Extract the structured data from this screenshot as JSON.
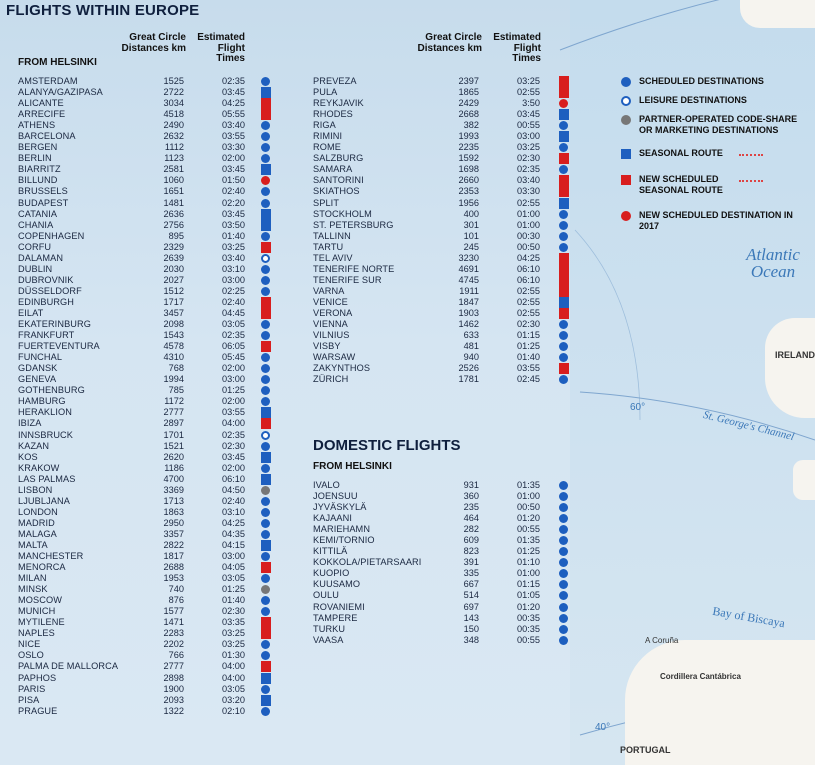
{
  "europe": {
    "title": "FLIGHTS WITHIN EUROPE",
    "from_label": "FROM HELSINKI",
    "col_distance": "Great Circle Distances km",
    "col_time": "Estimated Flight Times",
    "left": [
      {
        "city": "Amsterdam",
        "km": "1525",
        "time": "02:35",
        "marker": "scheduled"
      },
      {
        "city": "Alanya/Gazipasa",
        "km": "2722",
        "time": "03:45",
        "marker": "seasonal"
      },
      {
        "city": "Alicante",
        "km": "3034",
        "time": "04:25",
        "marker": "new-seasonal"
      },
      {
        "city": "Arrecife",
        "km": "4518",
        "time": "05:55",
        "marker": "new-seasonal"
      },
      {
        "city": "Athens",
        "km": "2490",
        "time": "03:40",
        "marker": "scheduled"
      },
      {
        "city": "Barcelona",
        "km": "2632",
        "time": "03:55",
        "marker": "scheduled"
      },
      {
        "city": "Bergen",
        "km": "1112",
        "time": "03:30",
        "marker": "scheduled"
      },
      {
        "city": "Berlin",
        "km": "1123",
        "time": "02:00",
        "marker": "scheduled"
      },
      {
        "city": "Biarritz",
        "km": "2581",
        "time": "03:45",
        "marker": "seasonal"
      },
      {
        "city": "Billund",
        "km": "1060",
        "time": "01:50",
        "marker": "new-dest"
      },
      {
        "city": "Brussels",
        "km": "1651",
        "time": "02:40",
        "marker": "scheduled"
      },
      {
        "city": "Budapest",
        "km": "1481",
        "time": "02:20",
        "marker": "scheduled"
      },
      {
        "city": "Catania",
        "km": "2636",
        "time": "03:45",
        "marker": "seasonal"
      },
      {
        "city": "Chania",
        "km": "2756",
        "time": "03:50",
        "marker": "seasonal"
      },
      {
        "city": "Copenhagen",
        "km": "895",
        "time": "01:40",
        "marker": "scheduled"
      },
      {
        "city": "Corfu",
        "km": "2329",
        "time": "03:25",
        "marker": "new-seasonal"
      },
      {
        "city": "Dalaman",
        "km": "2639",
        "time": "03:40",
        "marker": "leisure"
      },
      {
        "city": "Dublin",
        "km": "2030",
        "time": "03:10",
        "marker": "scheduled"
      },
      {
        "city": "Dubrovnik",
        "km": "2027",
        "time": "03:00",
        "marker": "scheduled"
      },
      {
        "city": "Düsseldorf",
        "km": "1512",
        "time": "02:25",
        "marker": "scheduled"
      },
      {
        "city": "Edinburgh",
        "km": "1717",
        "time": "02:40",
        "marker": "new-seasonal"
      },
      {
        "city": "Eilat",
        "km": "3457",
        "time": "04:45",
        "marker": "new-seasonal"
      },
      {
        "city": "Ekaterinburg",
        "km": "2098",
        "time": "03:05",
        "marker": "scheduled"
      },
      {
        "city": "Frankfurt",
        "km": "1543",
        "time": "02:35",
        "marker": "scheduled"
      },
      {
        "city": "Fuerteventura",
        "km": "4578",
        "time": "06:05",
        "marker": "new-seasonal"
      },
      {
        "city": "Funchal",
        "km": "4310",
        "time": "05:45",
        "marker": "scheduled"
      },
      {
        "city": "Gdansk",
        "km": "768",
        "time": "02:00",
        "marker": "scheduled"
      },
      {
        "city": "Geneva",
        "km": "1994",
        "time": "03:00",
        "marker": "scheduled"
      },
      {
        "city": "Gothenburg",
        "km": "785",
        "time": "01:25",
        "marker": "scheduled"
      },
      {
        "city": "Hamburg",
        "km": "1172",
        "time": "02:00",
        "marker": "scheduled"
      },
      {
        "city": "Heraklion",
        "km": "2777",
        "time": "03:55",
        "marker": "seasonal"
      },
      {
        "city": "Ibiza",
        "km": "2897",
        "time": "04:00",
        "marker": "new-seasonal"
      },
      {
        "city": "Innsbruck",
        "km": "1701",
        "time": "02:35",
        "marker": "leisure"
      },
      {
        "city": "Kazan",
        "km": "1521",
        "time": "02:30",
        "marker": "scheduled"
      },
      {
        "city": "Kos",
        "km": "2620",
        "time": "03:45",
        "marker": "seasonal"
      },
      {
        "city": "Krakow",
        "km": "1186",
        "time": "02:00",
        "marker": "scheduled"
      },
      {
        "city": "Las Palmas",
        "km": "4700",
        "time": "06:10",
        "marker": "seasonal"
      },
      {
        "city": "Lisbon",
        "km": "3369",
        "time": "04:50",
        "marker": "partner"
      },
      {
        "city": "Ljubljana",
        "km": "1713",
        "time": "02:40",
        "marker": "scheduled"
      },
      {
        "city": "London",
        "km": "1863",
        "time": "03:10",
        "marker": "scheduled"
      },
      {
        "city": "Madrid",
        "km": "2950",
        "time": "04:25",
        "marker": "scheduled"
      },
      {
        "city": "Malaga",
        "km": "3357",
        "time": "04:35",
        "marker": "scheduled"
      },
      {
        "city": "Malta",
        "km": "2822",
        "time": "04:15",
        "marker": "seasonal"
      },
      {
        "city": "Manchester",
        "km": "1817",
        "time": "03:00",
        "marker": "scheduled"
      },
      {
        "city": "Menorca",
        "km": "2688",
        "time": "04:05",
        "marker": "new-seasonal"
      },
      {
        "city": "Milan",
        "km": "1953",
        "time": "03:05",
        "marker": "scheduled"
      },
      {
        "city": "Minsk",
        "km": "740",
        "time": "01:25",
        "marker": "partner"
      },
      {
        "city": "Moscow",
        "km": "876",
        "time": "01:40",
        "marker": "scheduled"
      },
      {
        "city": "Munich",
        "km": "1577",
        "time": "02:30",
        "marker": "scheduled"
      },
      {
        "city": "Mytilene",
        "km": "1471",
        "time": "03:35",
        "marker": "new-seasonal"
      },
      {
        "city": "Naples",
        "km": "2283",
        "time": "03:25",
        "marker": "new-seasonal"
      },
      {
        "city": "Nice",
        "km": "2202",
        "time": "03:25",
        "marker": "scheduled"
      },
      {
        "city": "Oslo",
        "km": "766",
        "time": "01:30",
        "marker": "scheduled"
      },
      {
        "city": "Palma de Mallorca",
        "km": "2777",
        "time": "04:00",
        "marker": "new-seasonal"
      },
      {
        "city": "Paphos",
        "km": "2898",
        "time": "04:00",
        "marker": "seasonal"
      },
      {
        "city": "Paris",
        "km": "1900",
        "time": "03:05",
        "marker": "scheduled"
      },
      {
        "city": "Pisa",
        "km": "2093",
        "time": "03:20",
        "marker": "seasonal"
      },
      {
        "city": "Prague",
        "km": "1322",
        "time": "02:10",
        "marker": "scheduled"
      }
    ],
    "right": [
      {
        "city": "Preveza",
        "km": "2397",
        "time": "03:25",
        "marker": "new-seasonal"
      },
      {
        "city": "Pula",
        "km": "1865",
        "time": "02:55",
        "marker": "new-seasonal"
      },
      {
        "city": "Reykjavik",
        "km": "2429",
        "time": "3:50",
        "marker": "new-dest"
      },
      {
        "city": "Rhodes",
        "km": "2668",
        "time": "03:45",
        "marker": "seasonal"
      },
      {
        "city": "Riga",
        "km": "382",
        "time": "00:55",
        "marker": "scheduled"
      },
      {
        "city": "Rimini",
        "km": "1993",
        "time": "03:00",
        "marker": "seasonal"
      },
      {
        "city": "Rome",
        "km": "2235",
        "time": "03:25",
        "marker": "scheduled"
      },
      {
        "city": "Salzburg",
        "km": "1592",
        "time": "02:30",
        "marker": "new-seasonal"
      },
      {
        "city": "Samara",
        "km": "1698",
        "time": "02:35",
        "marker": "scheduled"
      },
      {
        "city": "Santorini",
        "km": "2660",
        "time": "03:40",
        "marker": "new-seasonal"
      },
      {
        "city": "Skiathos",
        "km": "2353",
        "time": "03:30",
        "marker": "new-seasonal"
      },
      {
        "city": "Split",
        "km": "1956",
        "time": "02:55",
        "marker": "seasonal"
      },
      {
        "city": "Stockholm",
        "km": "400",
        "time": "01:00",
        "marker": "scheduled"
      },
      {
        "city": "St. Petersburg",
        "km": "301",
        "time": "01:00",
        "marker": "scheduled"
      },
      {
        "city": "Tallinn",
        "km": "101",
        "time": "00:30",
        "marker": "scheduled"
      },
      {
        "city": "Tartu",
        "km": "245",
        "time": "00:50",
        "marker": "scheduled"
      },
      {
        "city": "Tel Aviv",
        "km": "3230",
        "time": "04:25",
        "marker": "new-seasonal"
      },
      {
        "city": "Tenerife Norte",
        "km": "4691",
        "time": "06:10",
        "marker": "new-seasonal"
      },
      {
        "city": "Tenerife Sur",
        "km": "4745",
        "time": "06:10",
        "marker": "new-seasonal"
      },
      {
        "city": "Varna",
        "km": "1911",
        "time": "02:55",
        "marker": "new-seasonal"
      },
      {
        "city": "Venice",
        "km": "1847",
        "time": "02:55",
        "marker": "seasonal"
      },
      {
        "city": "Verona",
        "km": "1903",
        "time": "02:55",
        "marker": "new-seasonal"
      },
      {
        "city": "Vienna",
        "km": "1462",
        "time": "02:30",
        "marker": "scheduled"
      },
      {
        "city": "Vilnius",
        "km": "633",
        "time": "01:15",
        "marker": "scheduled"
      },
      {
        "city": "Visby",
        "km": "481",
        "time": "01:25",
        "marker": "scheduled"
      },
      {
        "city": "Warsaw",
        "km": "940",
        "time": "01:40",
        "marker": "scheduled"
      },
      {
        "city": "Zakynthos",
        "km": "2526",
        "time": "03:55",
        "marker": "new-seasonal"
      },
      {
        "city": "Zürich",
        "km": "1781",
        "time": "02:45",
        "marker": "scheduled"
      }
    ]
  },
  "domestic": {
    "title": "DOMESTIC FLIGHTS",
    "from_label": "FROM HELSINKI",
    "rows": [
      {
        "city": "Ivalo",
        "km": "931",
        "time": "01:35",
        "marker": "scheduled"
      },
      {
        "city": "Joensuu",
        "km": "360",
        "time": "01:00",
        "marker": "scheduled"
      },
      {
        "city": "Jyväskylä",
        "km": "235",
        "time": "00:50",
        "marker": "scheduled"
      },
      {
        "city": "Kajaani",
        "km": "464",
        "time": "01:20",
        "marker": "scheduled"
      },
      {
        "city": "Mariehamn",
        "km": "282",
        "time": "00:55",
        "marker": "scheduled"
      },
      {
        "city": "Kemi/Tornio",
        "km": "609",
        "time": "01:35",
        "marker": "scheduled"
      },
      {
        "city": "Kittilä",
        "km": "823",
        "time": "01:25",
        "marker": "scheduled"
      },
      {
        "city": "Kokkola/Pietarsaari",
        "km": "391",
        "time": "01:10",
        "marker": "scheduled"
      },
      {
        "city": "Kuopio",
        "km": "335",
        "time": "01:00",
        "marker": "scheduled"
      },
      {
        "city": "Kuusamo",
        "km": "667",
        "time": "01:15",
        "marker": "scheduled"
      },
      {
        "city": "Oulu",
        "km": "514",
        "time": "01:05",
        "marker": "scheduled"
      },
      {
        "city": "Rovaniemi",
        "km": "697",
        "time": "01:20",
        "marker": "scheduled"
      },
      {
        "city": "Tampere",
        "km": "143",
        "time": "00:35",
        "marker": "scheduled"
      },
      {
        "city": "Turku",
        "km": "150",
        "time": "00:35",
        "marker": "scheduled"
      },
      {
        "city": "Vaasa",
        "km": "348",
        "time": "00:55",
        "marker": "scheduled"
      }
    ]
  },
  "legend": [
    {
      "marker": "scheduled",
      "label": "Scheduled destinations",
      "dashed": false
    },
    {
      "marker": "leisure",
      "label": "Leisure destinations",
      "dashed": false
    },
    {
      "marker": "partner",
      "label": "Partner-operated code-share or marketing destinations",
      "dashed": false
    },
    {
      "marker": "seasonal",
      "label": "Seasonal route",
      "dashed": true
    },
    {
      "marker": "new-seasonal",
      "label": "New scheduled seasonal route",
      "dashed": true
    },
    {
      "marker": "new-dest",
      "label": "New scheduled destination in 2017",
      "dashed": false
    }
  ],
  "map": {
    "ocean": "Atlantic Ocean",
    "channel": "St. George's Channel",
    "bay": "Bay of Biscaya",
    "ireland": "IRELAND",
    "portugal": "PORTUGAL",
    "cordillera": "Cordillera Cantábrica",
    "coruna": "A Coruña",
    "lat60": "60°",
    "lat40": "40°"
  },
  "colors": {
    "blue": "#1e5fbf",
    "red": "#d81e1e",
    "gray": "#777777"
  }
}
